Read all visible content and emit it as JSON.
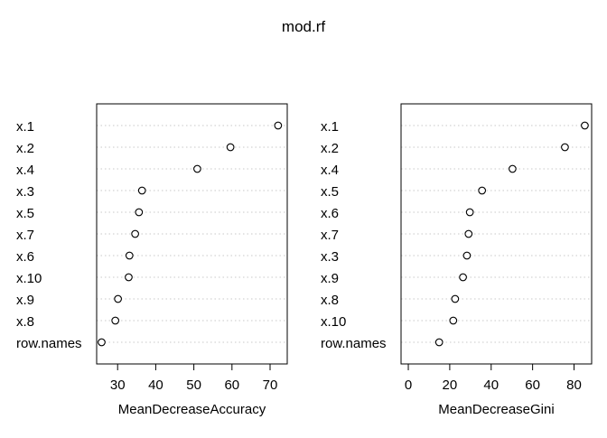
{
  "title": "mod.rf",
  "chart_data": [
    {
      "type": "scatter",
      "xlabel": "MeanDecreaseAccuracy",
      "ylabel": "",
      "xlim": [
        24.5,
        74.5
      ],
      "xticks": [
        30,
        40,
        50,
        60,
        70
      ],
      "grid": "dotted horizontal",
      "marker": "open-circle",
      "categories": [
        "x.1",
        "x.2",
        "x.4",
        "x.3",
        "x.5",
        "x.7",
        "x.6",
        "x.10",
        "x.9",
        "x.8",
        "row.names"
      ],
      "values": [
        72.1,
        59.6,
        50.9,
        36.4,
        35.6,
        34.6,
        33.1,
        32.9,
        30.1,
        29.4,
        25.8
      ]
    },
    {
      "type": "scatter",
      "xlabel": "MeanDecreaseGini",
      "ylabel": "",
      "xlim": [
        -3.5,
        88.5
      ],
      "xticks": [
        0,
        20,
        40,
        60,
        80
      ],
      "grid": "dotted horizontal",
      "marker": "open-circle",
      "categories": [
        "x.1",
        "x.2",
        "x.4",
        "x.5",
        "x.6",
        "x.7",
        "x.3",
        "x.9",
        "x.8",
        "x.10",
        "row.names"
      ],
      "values": [
        85.2,
        75.6,
        50.3,
        35.6,
        29.7,
        29.1,
        28.3,
        26.4,
        22.6,
        21.7,
        14.9
      ]
    }
  ]
}
